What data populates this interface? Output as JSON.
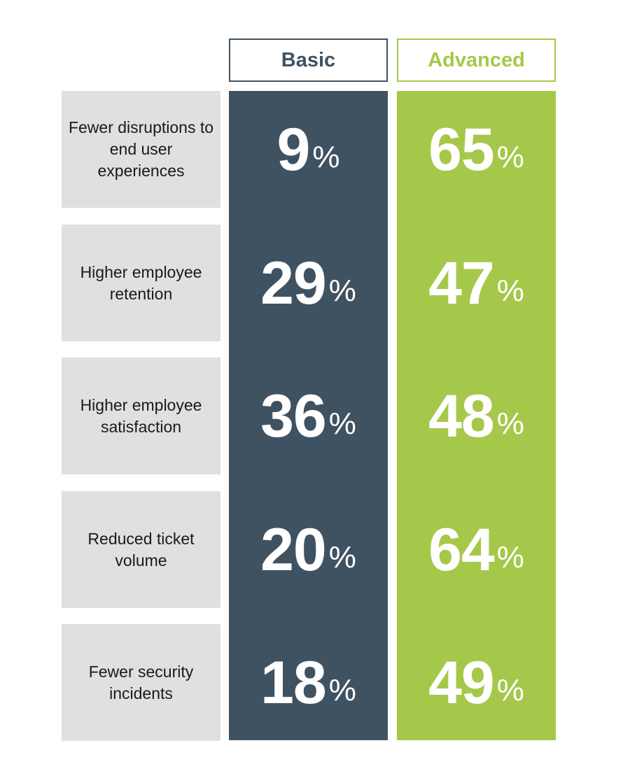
{
  "colors": {
    "basic": "#3f5262",
    "advanced": "#a6c84a",
    "label_bg": "#e0e0e0"
  },
  "chart_data": {
    "type": "table",
    "unit": "%",
    "columns": [
      "Basic",
      "Advanced"
    ],
    "rows": [
      {
        "label": "Fewer disruptions to end user experiences",
        "basic": 9,
        "advanced": 65
      },
      {
        "label": "Higher employee retention",
        "basic": 29,
        "advanced": 47
      },
      {
        "label": "Higher employee satisfaction",
        "basic": 36,
        "advanced": 48
      },
      {
        "label": "Reduced ticket volume",
        "basic": 20,
        "advanced": 64
      },
      {
        "label": "Fewer security incidents",
        "basic": 18,
        "advanced": 49
      }
    ]
  }
}
